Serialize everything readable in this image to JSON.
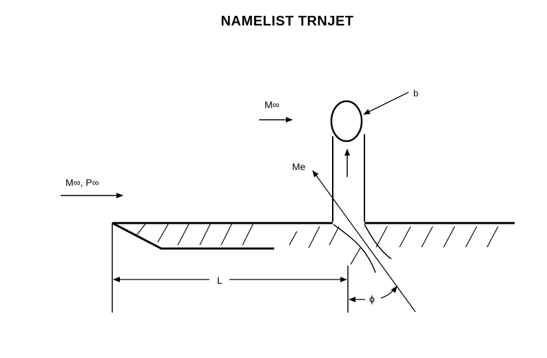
{
  "title": "NAMELIST TRNJET",
  "labels": {
    "freestream_mach": "M∞",
    "freestream_mach_pressure": "M∞, P∞",
    "jet_exit_mach": "Me",
    "plume_boundary": "b",
    "length": "L",
    "angle": "ϕ"
  },
  "colors": {
    "ink": "#000000",
    "background": "#ffffff"
  }
}
